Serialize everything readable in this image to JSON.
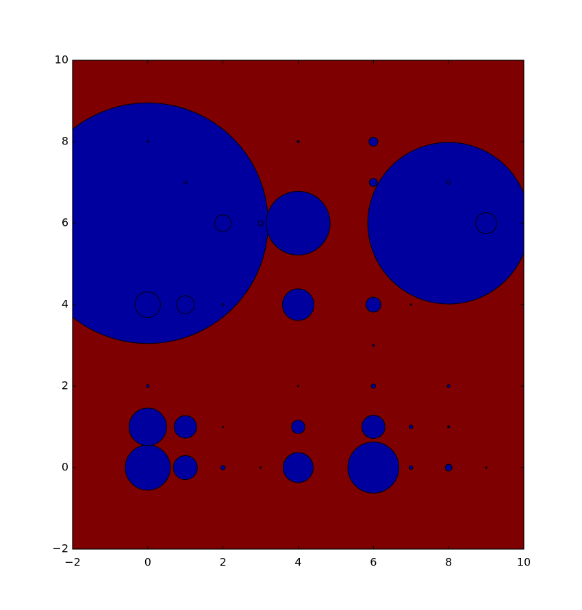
{
  "chart_data": {
    "type": "scatter",
    "title": "",
    "xlabel": "",
    "ylabel": "",
    "xlim": [
      -2,
      10
    ],
    "ylim": [
      -2,
      10
    ],
    "grid": false,
    "background_color": "#7f0000",
    "marker_face_color": "#00009f",
    "marker_edge_color": "#000000",
    "x_ticks": [
      -2,
      0,
      2,
      4,
      6,
      8,
      10
    ],
    "x_tick_labels": [
      "−2",
      "0",
      "2",
      "4",
      "6",
      "8",
      "10"
    ],
    "y_ticks": [
      -2,
      0,
      2,
      4,
      6,
      8,
      10
    ],
    "y_tick_labels": [
      "−2",
      "0",
      "2",
      "4",
      "6",
      "8",
      "10"
    ],
    "points": [
      {
        "x": 0,
        "y": 6,
        "r": 3.2
      },
      {
        "x": 8,
        "y": 6,
        "r": 2.15
      },
      {
        "x": 4,
        "y": 6,
        "r": 0.85
      },
      {
        "x": 6,
        "y": 0,
        "r": 0.68
      },
      {
        "x": 0,
        "y": 0,
        "r": 0.6
      },
      {
        "x": 0,
        "y": 1,
        "r": 0.5
      },
      {
        "x": 4,
        "y": 4,
        "r": 0.42
      },
      {
        "x": 4,
        "y": 0,
        "r": 0.4
      },
      {
        "x": 0,
        "y": 4,
        "r": 0.34
      },
      {
        "x": 1,
        "y": 0,
        "r": 0.32
      },
      {
        "x": 6,
        "y": 1,
        "r": 0.31
      },
      {
        "x": 1,
        "y": 1,
        "r": 0.3
      },
      {
        "x": 9,
        "y": 6,
        "r": 0.28
      },
      {
        "x": 2,
        "y": 6,
        "r": 0.22
      },
      {
        "x": 1,
        "y": 4,
        "r": 0.24
      },
      {
        "x": 6,
        "y": 4,
        "r": 0.2
      },
      {
        "x": 4,
        "y": 1,
        "r": 0.18
      },
      {
        "x": 6,
        "y": 8,
        "r": 0.12
      },
      {
        "x": 6,
        "y": 7,
        "r": 0.11
      },
      {
        "x": 8,
        "y": 0,
        "r": 0.09
      },
      {
        "x": 3,
        "y": 6,
        "r": 0.07
      },
      {
        "x": 2,
        "y": 0,
        "r": 0.06
      },
      {
        "x": 6,
        "y": 2,
        "r": 0.06
      },
      {
        "x": 7,
        "y": 1,
        "r": 0.05
      },
      {
        "x": 7,
        "y": 0,
        "r": 0.05
      },
      {
        "x": 8,
        "y": 7,
        "r": 0.05
      },
      {
        "x": 1,
        "y": 7,
        "r": 0.04
      },
      {
        "x": 0,
        "y": 2,
        "r": 0.04
      },
      {
        "x": 8,
        "y": 2,
        "r": 0.04
      },
      {
        "x": 2,
        "y": 4,
        "r": 0.03
      },
      {
        "x": 4,
        "y": 8,
        "r": 0.03
      },
      {
        "x": 6,
        "y": 3,
        "r": 0.03
      },
      {
        "x": 8,
        "y": 1,
        "r": 0.03
      },
      {
        "x": 0,
        "y": 8,
        "r": 0.025
      },
      {
        "x": 3,
        "y": 0,
        "r": 0.02
      },
      {
        "x": 7,
        "y": 4,
        "r": 0.02
      },
      {
        "x": 9,
        "y": 0,
        "r": 0.02
      },
      {
        "x": 2,
        "y": 1,
        "r": 0.015
      },
      {
        "x": 4,
        "y": 2,
        "r": 0.01
      }
    ]
  }
}
